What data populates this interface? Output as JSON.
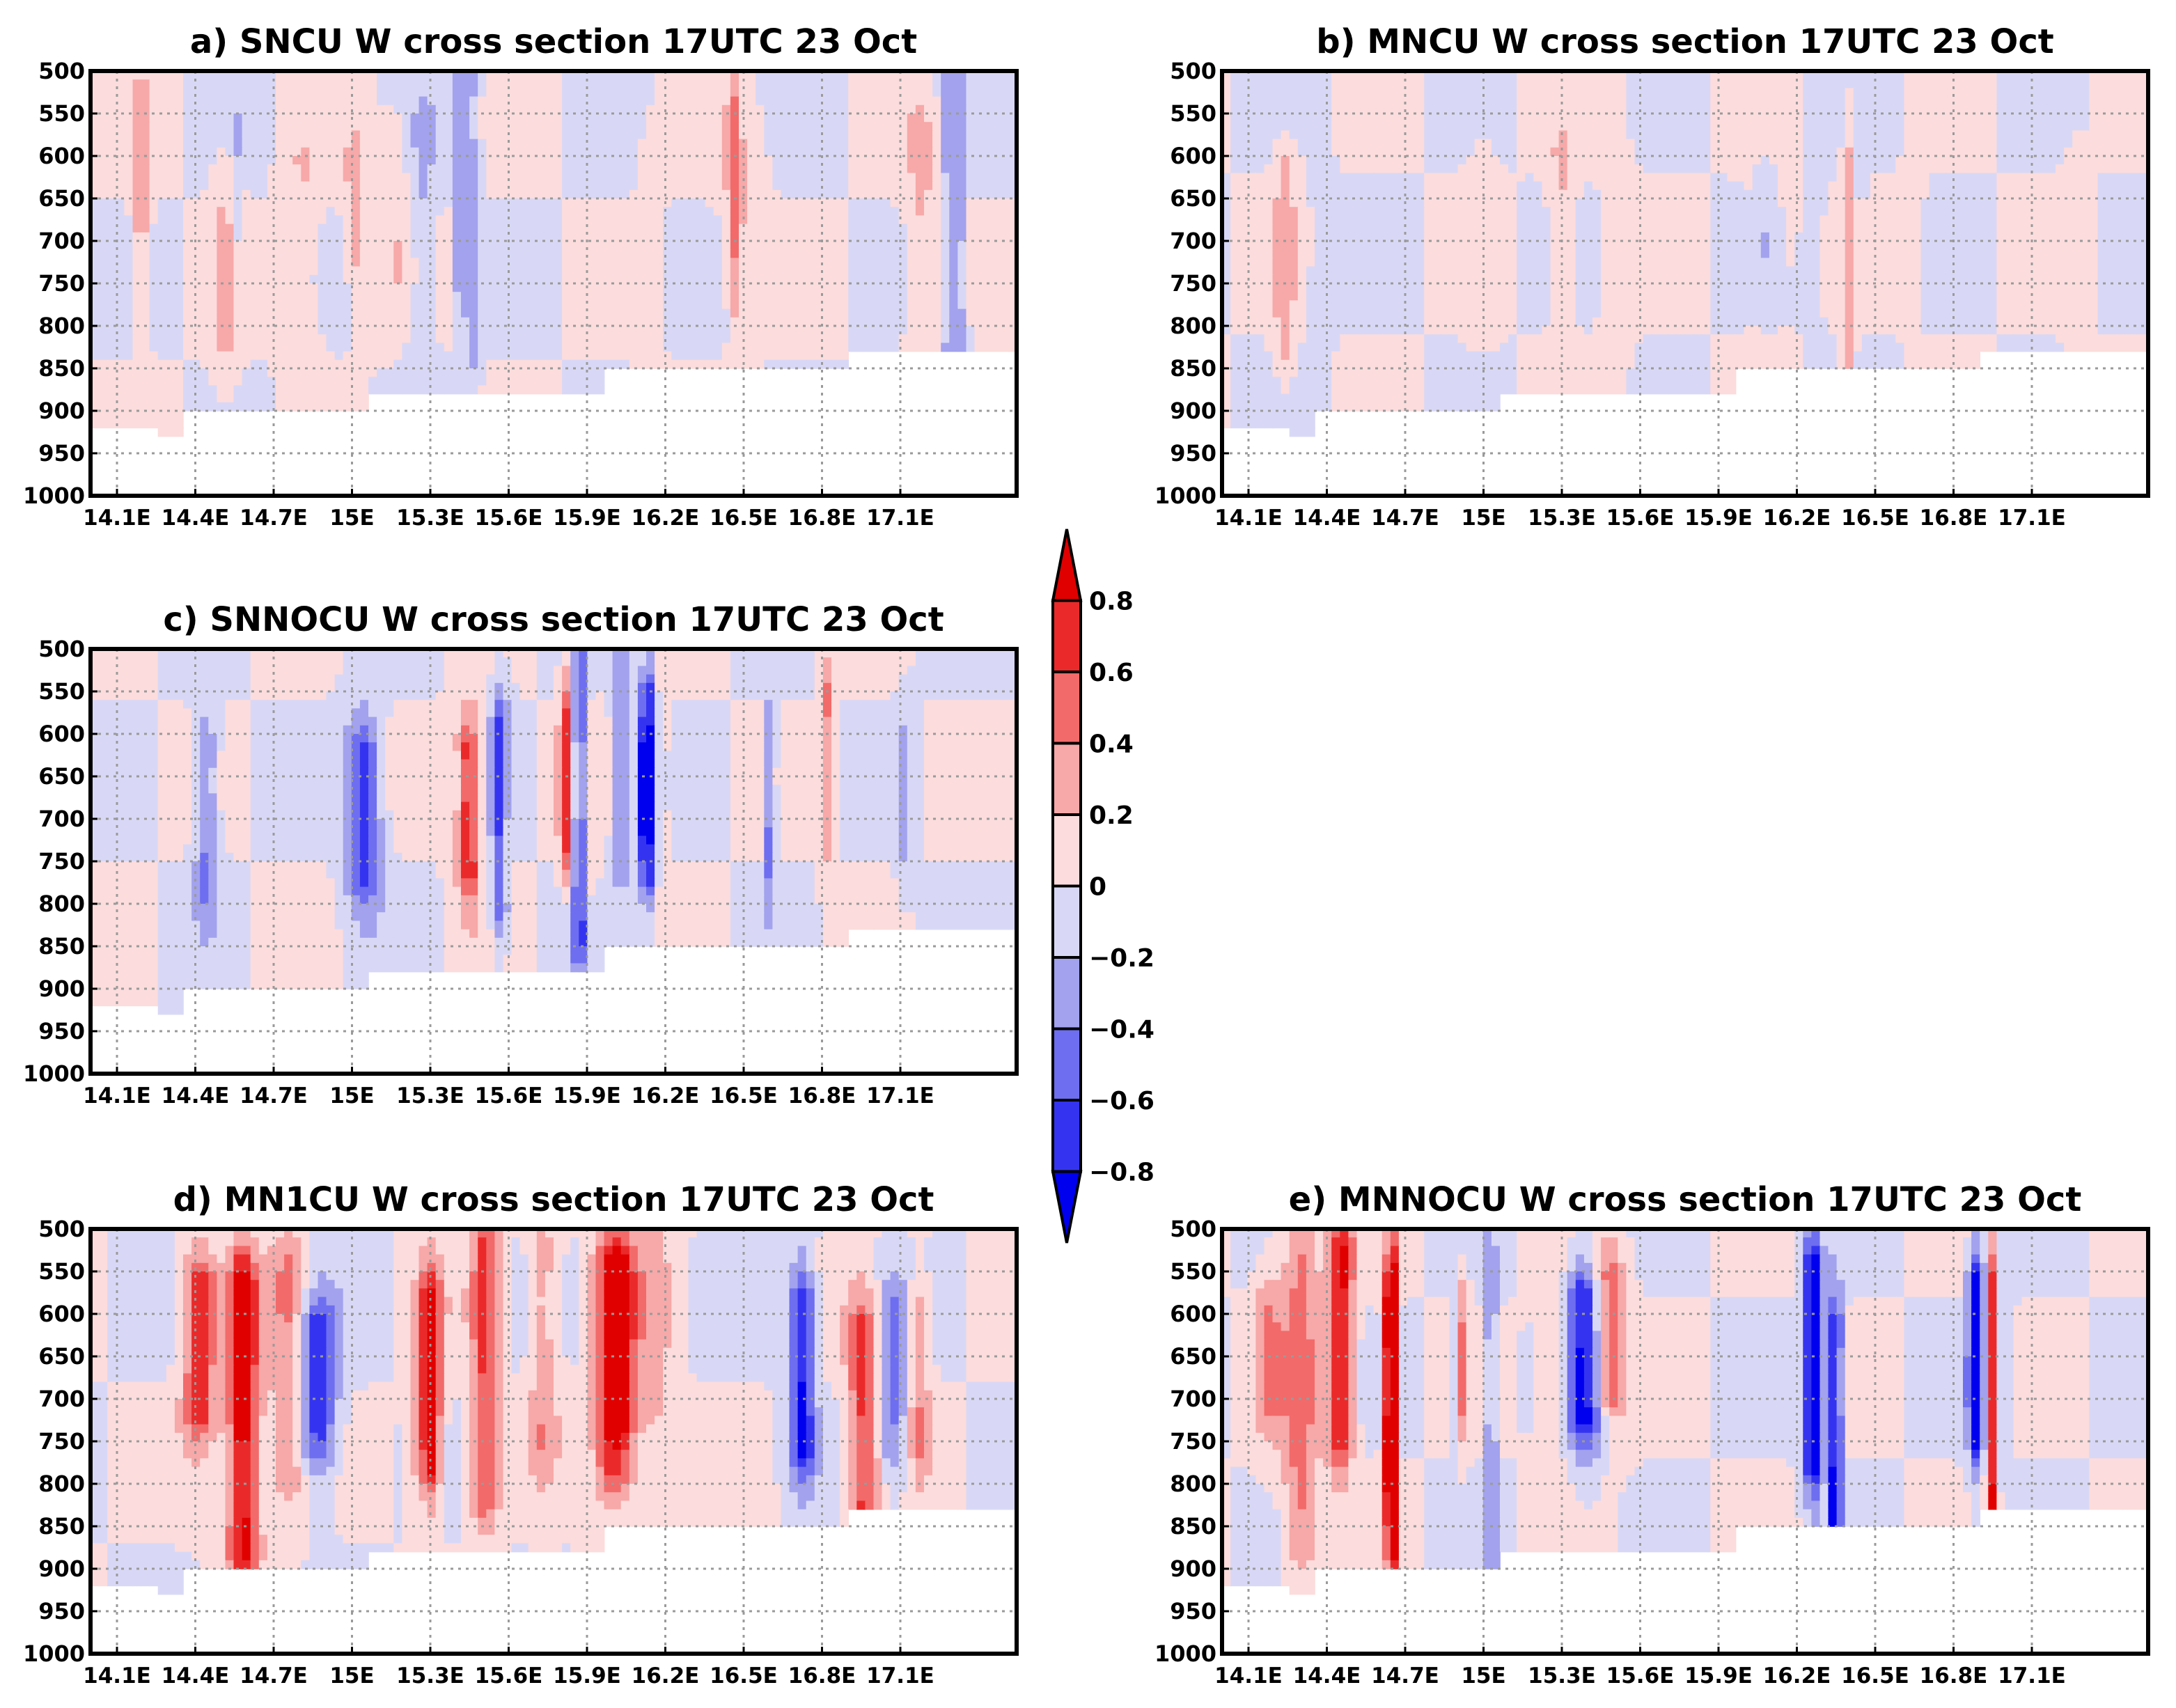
{
  "chart_data": {
    "type": "heatmap",
    "variable": "W",
    "colorbar": {
      "levels": [
        -0.8,
        -0.6,
        -0.4,
        -0.2,
        0,
        0.2,
        0.4,
        0.6,
        0.8
      ],
      "labels": [
        "−0.8",
        "−0.6",
        "−0.4",
        "−0.2",
        "0",
        "0.2",
        "0.4",
        "0.6",
        "0.8"
      ],
      "colors": [
        "#0000ee",
        "#3434f0",
        "#6e6ef0",
        "#a2a2ee",
        "#d8d8f6",
        "#fcdcdc",
        "#f7a8a8",
        "#f26a6a",
        "#ea2a2a",
        "#e00000"
      ]
    },
    "x_ticks": [
      "14.1E",
      "14.4E",
      "14.7E",
      "15E",
      "15.3E",
      "15.6E",
      "15.9E",
      "16.2E",
      "16.5E",
      "16.8E",
      "17.1E"
    ],
    "y_ticks": [
      "500",
      "550",
      "600",
      "650",
      "700",
      "750",
      "800",
      "850",
      "900",
      "950",
      "1000"
    ],
    "panels": [
      {
        "id": "a",
        "title": "a) SNCU W cross section 17UTC 23 Oct",
        "intensity": 0.35,
        "seed": 11
      },
      {
        "id": "b",
        "title": "b) MNCU W cross section 17UTC 23 Oct",
        "intensity": 0.25,
        "seed": 23
      },
      {
        "id": "c",
        "title": "c) SNNOCU W cross section 17UTC 23 Oct",
        "intensity": 0.75,
        "seed": 37
      },
      {
        "id": "d",
        "title": "d) MN1CU W cross section 17UTC 23 Oct",
        "intensity": 0.85,
        "seed": 51
      },
      {
        "id": "e",
        "title": "e) MNNOCU W cross section 17UTC 23 Oct",
        "intensity": 0.95,
        "seed": 67
      }
    ]
  }
}
